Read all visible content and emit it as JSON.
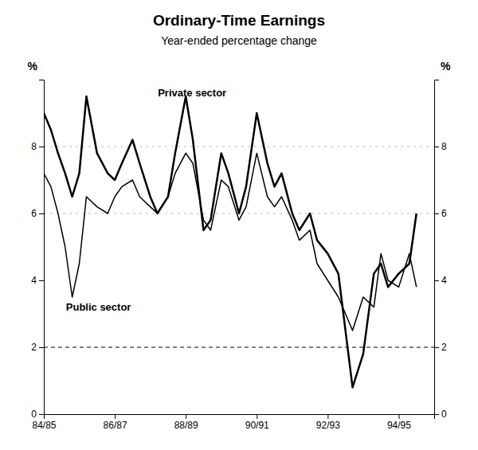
{
  "chart_data": {
    "type": "line",
    "title": "Ordinary-Time Earnings",
    "subtitle": "Year-ended percentage change",
    "ylabel": "%",
    "y2label": "%",
    "x": [
      0.0,
      0.2,
      0.4,
      0.6,
      0.8,
      1.0,
      1.2,
      1.5,
      1.8,
      2.0,
      2.2,
      2.5,
      2.7,
      3.0,
      3.2,
      3.5,
      3.7,
      4.0,
      4.2,
      4.5,
      4.7,
      5.0,
      5.2,
      5.5,
      5.7,
      6.0,
      6.3,
      6.5,
      6.7,
      7.0,
      7.2,
      7.5,
      7.7,
      8.0,
      8.3,
      8.7,
      9.0,
      9.3,
      9.5,
      9.7,
      10.0,
      10.3,
      10.5
    ],
    "series": [
      {
        "name": "Private sector",
        "color": "#000000",
        "values": [
          9.0,
          8.5,
          7.8,
          7.2,
          6.5,
          7.2,
          9.5,
          7.8,
          7.2,
          7.0,
          7.5,
          8.2,
          7.5,
          6.5,
          6.0,
          6.5,
          7.8,
          9.5,
          8.2,
          5.5,
          5.8,
          7.8,
          7.2,
          6.0,
          6.8,
          9.0,
          7.5,
          6.8,
          7.2,
          6.0,
          5.5,
          6.0,
          5.2,
          4.8,
          4.2,
          0.8,
          1.8,
          4.2,
          4.5,
          3.8,
          4.2,
          4.5,
          6.0
        ]
      },
      {
        "name": "Public sector",
        "color": "#000000",
        "values": [
          7.2,
          6.8,
          6.0,
          5.0,
          3.5,
          4.5,
          6.5,
          6.2,
          6.0,
          6.5,
          6.8,
          7.0,
          6.5,
          6.2,
          6.0,
          6.5,
          7.2,
          7.8,
          7.5,
          5.8,
          5.5,
          7.0,
          6.8,
          5.8,
          6.2,
          7.8,
          6.5,
          6.2,
          6.5,
          5.8,
          5.2,
          5.5,
          4.5,
          4.0,
          3.5,
          2.5,
          3.5,
          3.2,
          4.8,
          4.0,
          3.8,
          4.8,
          3.8
        ]
      }
    ],
    "xlim": [
      0,
      11
    ],
    "xticks": [
      {
        "value": 0,
        "label": "84/85"
      },
      {
        "value": 2,
        "label": "86/87"
      },
      {
        "value": 4,
        "label": "88/89"
      },
      {
        "value": 6,
        "label": "90/91"
      },
      {
        "value": 8,
        "label": "92/93"
      },
      {
        "value": 10,
        "label": "94/95"
      }
    ],
    "ylim": [
      0,
      10
    ],
    "yticks": [
      0,
      2,
      4,
      6,
      8
    ],
    "y2lim": [
      0,
      10
    ],
    "y2ticks": [
      0,
      2,
      4,
      6,
      8
    ],
    "reference_lines": [
      {
        "y": 2.0,
        "color": "#000000",
        "line_style": "dashed"
      },
      {
        "y": 8.0,
        "color": "#aaaaaa",
        "line_style": "dashed"
      },
      {
        "y": 6.0,
        "color": "#aaaaaa",
        "line_style": "dashed"
      }
    ],
    "grid": false,
    "legend": false
  }
}
